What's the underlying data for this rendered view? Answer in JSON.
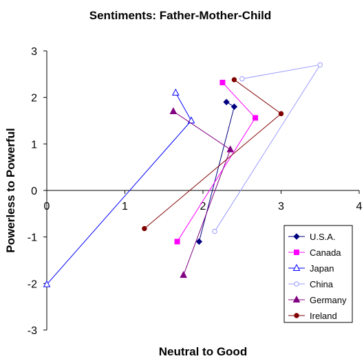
{
  "chart_data": {
    "type": "scatter",
    "title": "Sentiments: Father-Mother-Child",
    "xlabel": "Neutral to Good",
    "ylabel": "Powerless to Powerful",
    "xlim": [
      0,
      4
    ],
    "ylim": [
      -3,
      3
    ],
    "x_ticks": [
      "0",
      "1",
      "2",
      "3",
      "4"
    ],
    "y_ticks": [
      "3",
      "2",
      "1",
      "0",
      "-1",
      "-2",
      "-3"
    ],
    "grid": false,
    "legend_position": "right",
    "series": [
      {
        "name": "U.S.A.",
        "color": "#000080",
        "marker": "diamond",
        "points": [
          [
            2.3,
            1.9
          ],
          [
            2.4,
            1.8
          ],
          [
            1.95,
            -1.1
          ]
        ]
      },
      {
        "name": "Canada",
        "color": "#ff00ff",
        "marker": "square",
        "points": [
          [
            2.25,
            2.32
          ],
          [
            2.67,
            1.56
          ],
          [
            1.67,
            -1.1
          ]
        ]
      },
      {
        "name": "Japan",
        "color": "#0000ff",
        "marker": "triangle",
        "points": [
          [
            1.65,
            2.1
          ],
          [
            1.85,
            1.5
          ],
          [
            0.0,
            -2.02
          ]
        ]
      },
      {
        "name": "China",
        "color": "#9999ff",
        "marker": "circle-open",
        "points": [
          [
            2.5,
            2.4
          ],
          [
            3.5,
            2.7
          ],
          [
            2.15,
            -0.88
          ]
        ]
      },
      {
        "name": "Germany",
        "color": "#800080",
        "marker": "triangle",
        "points": [
          [
            1.62,
            1.7
          ],
          [
            2.35,
            0.88
          ],
          [
            1.75,
            -1.82
          ]
        ]
      },
      {
        "name": "Ireland",
        "color": "#800000",
        "marker": "circle",
        "points": [
          [
            2.4,
            2.38
          ],
          [
            3.0,
            1.65
          ],
          [
            1.25,
            -0.82
          ]
        ]
      }
    ]
  }
}
